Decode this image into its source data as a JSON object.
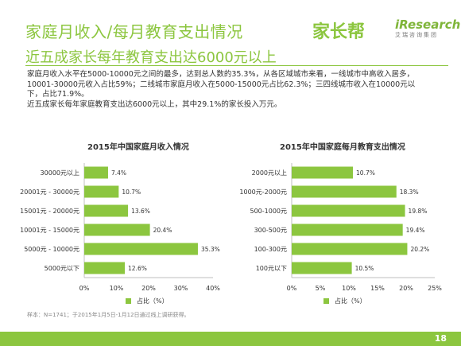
{
  "header": {
    "title": "家庭月收入/每月教育支出情况",
    "subtitle": "近五成家长每年教育支出达6000元以上",
    "logo_jzb": "家长帮",
    "logo_ir": "iResearch",
    "logo_ir_sub": "艾瑞咨询集团"
  },
  "body": {
    "line1": "家庭月收入水平在5000-10000元之间的最多，达到总人数的35.3%，从各区域城市来看，一线城市中高收入居多，",
    "line2": "10001-30000元收入占比59%；二线城市家庭月收入在5000-15000元占比62.3%；三四线城市收入在10000元以",
    "line3": "下，占比71.9%。",
    "line4": "近五成家长每年家庭教育支出达6000元以上，其中29.1%的家长投入万元。"
  },
  "footnote": "样本：N=1741；于2015年1月5日-1月12日通过线上调研获得。",
  "page_number": "18",
  "colors": {
    "accent": "#8cc63f",
    "axis": "#bfbfbf"
  },
  "chart_data": [
    {
      "type": "bar",
      "orientation": "horizontal",
      "title": "2015年中国家庭月收入情况",
      "categories": [
        "30000元以上",
        "20001元 - 30000元",
        "15001元 - 20000元",
        "10001元 - 15000元",
        "5000元 - 10000元",
        "5000元以下"
      ],
      "series": [
        {
          "name": "占比（%）",
          "values": [
            7.4,
            10.7,
            13.6,
            20.4,
            35.3,
            12.6
          ]
        }
      ],
      "value_labels": [
        "7.4%",
        "10.7%",
        "13.6%",
        "20.4%",
        "35.3%",
        "12.6%"
      ],
      "xlim": [
        0,
        40
      ],
      "ticks": [
        "0%",
        "10%",
        "20%",
        "30%",
        "40%"
      ],
      "legend": "bottom-center",
      "grid": false
    },
    {
      "type": "bar",
      "orientation": "horizontal",
      "title": "2015年中国家庭每月教育支出情况",
      "categories": [
        "2000元以上",
        "1000元-2000元",
        "500-1000元",
        "300-500元",
        "100-300元",
        "100元以下"
      ],
      "series": [
        {
          "name": "占比（%）",
          "values": [
            10.7,
            18.3,
            19.8,
            19.4,
            20.2,
            10.5
          ]
        }
      ],
      "value_labels": [
        "10.7%",
        "18.3%",
        "19.8%",
        "19.4%",
        "20.2%",
        "10.5%"
      ],
      "xlim": [
        0,
        25
      ],
      "ticks": [
        "0%",
        "5%",
        "10%",
        "15%",
        "20%",
        "25%"
      ],
      "legend": "bottom-center",
      "grid": false
    }
  ]
}
